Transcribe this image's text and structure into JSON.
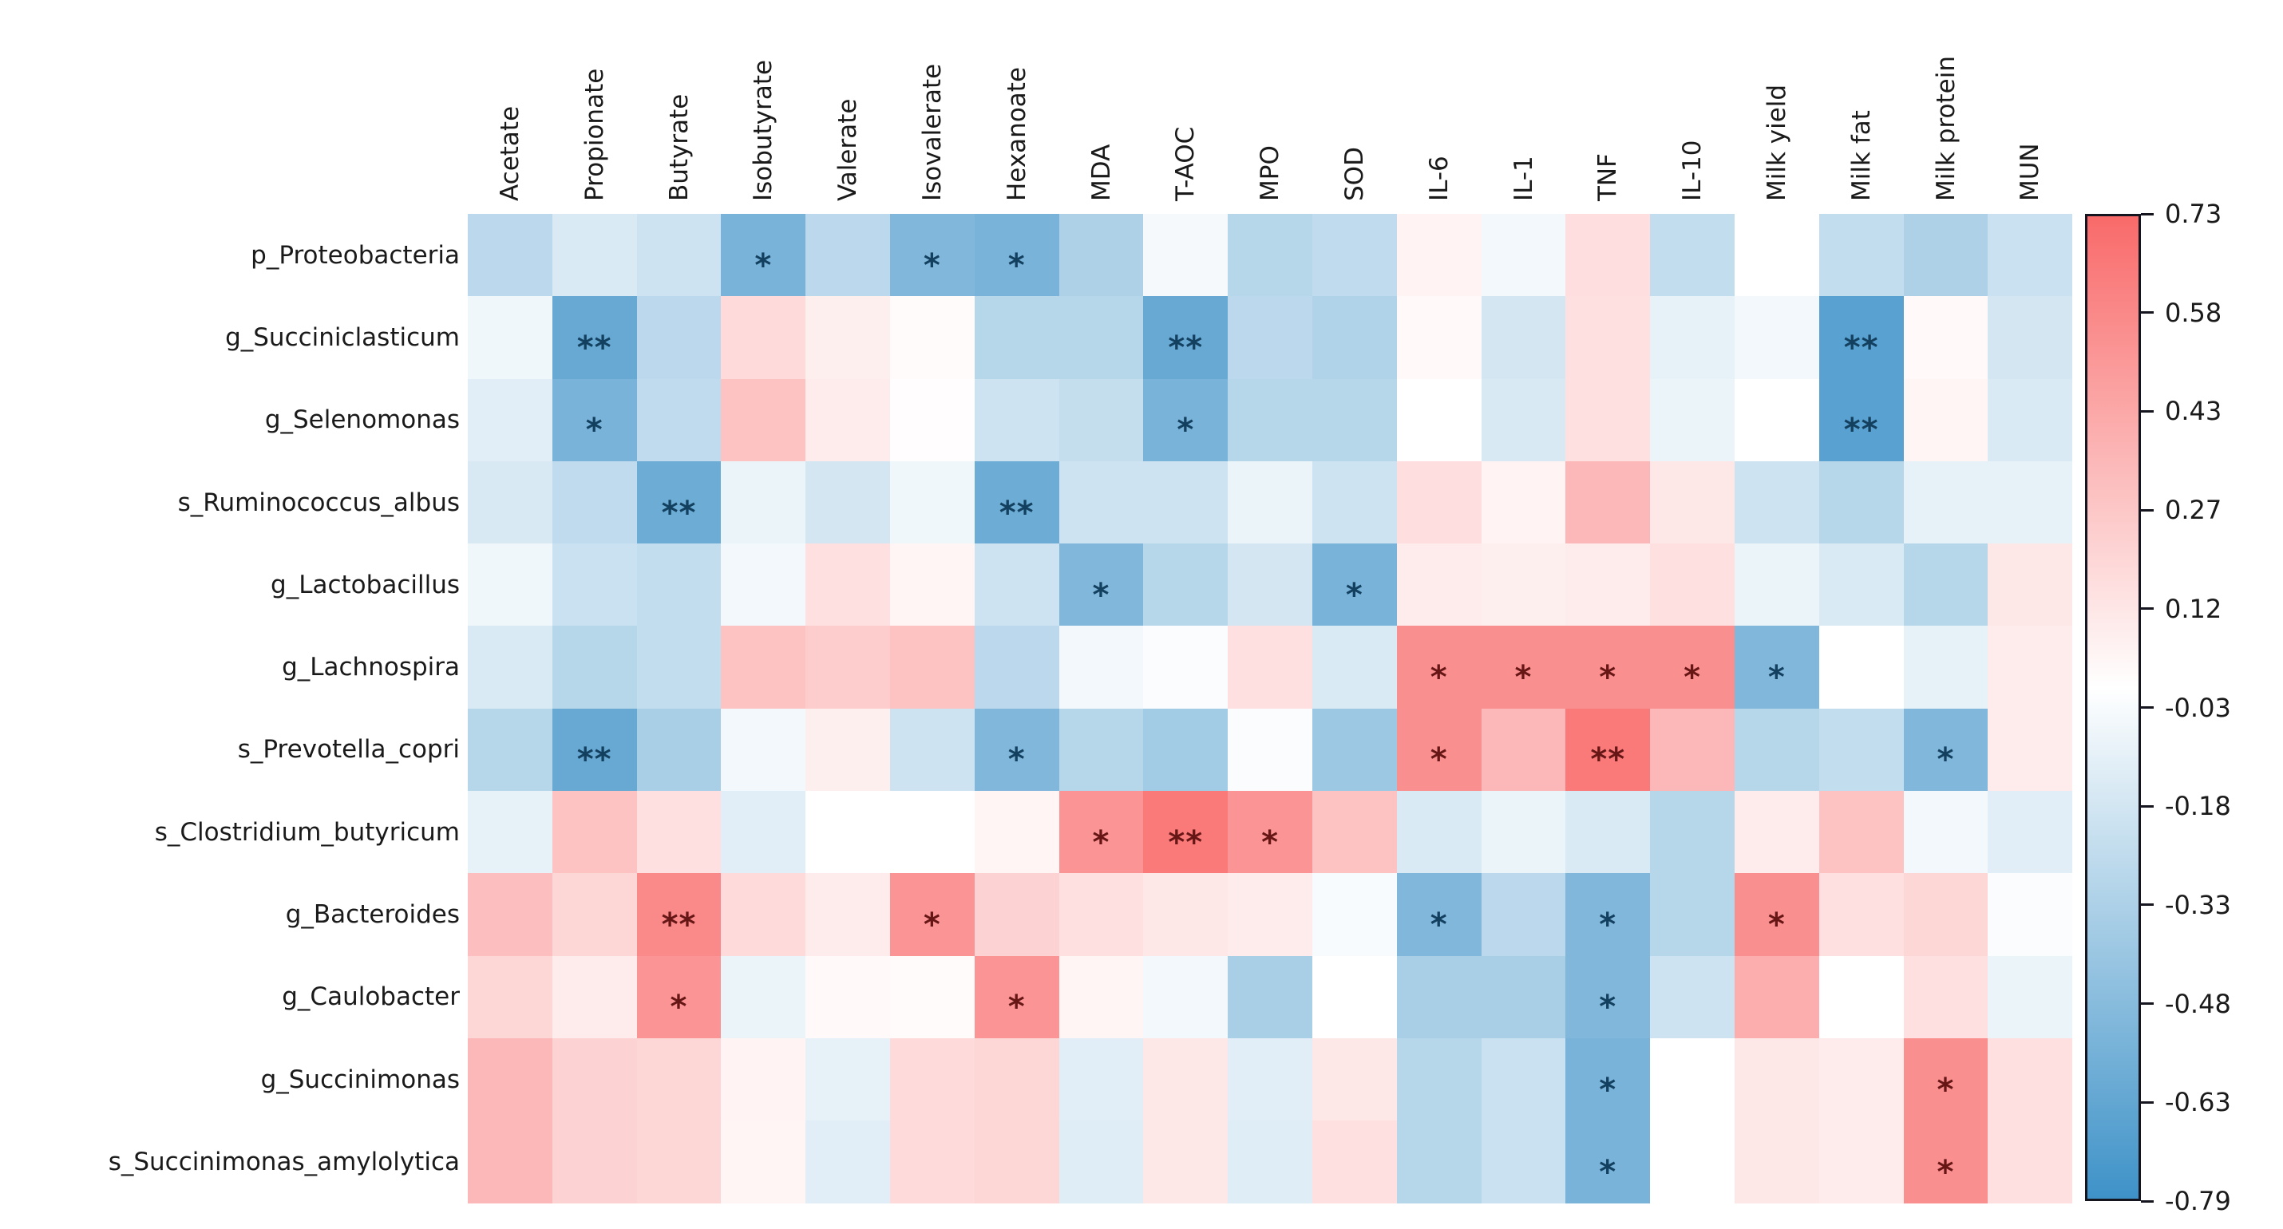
{
  "chart_data": {
    "type": "heatmap",
    "title": "",
    "xlabel": "",
    "ylabel": "",
    "grid": false,
    "legend_position": "right-colorbar",
    "columns": [
      "Acetate",
      "Propionate",
      "Butyrate",
      "Isobutyrate",
      "Valerate",
      "Isovalerate",
      "Hexanoate",
      "MDA",
      "T-AOC",
      "MPO",
      "SOD",
      "IL-6",
      "IL-1",
      "TNF",
      "IL-10",
      "Milk yield",
      "Milk fat",
      "Milk protein",
      "MUN"
    ],
    "rows": [
      "p_Proteobacteria",
      "g_Succiniclasticum",
      "g_Selenomonas",
      "s_Ruminococcus_albus",
      "g_Lactobacillus",
      "g_Lachnospira",
      "s_Prevotella_copri",
      "s_Clostridium_butyricum",
      "g_Bacteroides",
      "g_Caulobacter",
      "g_Succinimonas",
      "s_Succinimonas_amylolytica"
    ],
    "values": [
      [
        -0.28,
        -0.15,
        -0.2,
        -0.55,
        -0.28,
        -0.52,
        -0.55,
        -0.33,
        -0.04,
        -0.3,
        -0.26,
        0.06,
        -0.05,
        0.16,
        -0.25,
        0.0,
        -0.25,
        -0.33,
        -0.22
      ],
      [
        -0.06,
        -0.62,
        -0.28,
        0.18,
        0.08,
        0.02,
        -0.3,
        -0.3,
        -0.62,
        -0.28,
        -0.32,
        0.03,
        -0.18,
        0.15,
        -0.1,
        -0.05,
        -0.68,
        0.03,
        -0.18
      ],
      [
        -0.12,
        -0.55,
        -0.26,
        0.3,
        0.1,
        0.01,
        -0.2,
        -0.24,
        -0.55,
        -0.3,
        -0.3,
        0.0,
        -0.16,
        0.15,
        -0.08,
        0.0,
        -0.68,
        0.05,
        -0.15
      ],
      [
        -0.16,
        -0.26,
        -0.6,
        -0.08,
        -0.18,
        -0.06,
        -0.6,
        -0.2,
        -0.2,
        -0.08,
        -0.2,
        0.16,
        0.06,
        0.35,
        0.12,
        -0.2,
        -0.3,
        -0.1,
        -0.1
      ],
      [
        -0.06,
        -0.22,
        -0.25,
        -0.05,
        0.15,
        0.05,
        -0.2,
        -0.52,
        -0.3,
        -0.18,
        -0.55,
        0.1,
        0.08,
        0.1,
        0.15,
        -0.08,
        -0.15,
        -0.3,
        0.12
      ],
      [
        -0.15,
        -0.3,
        -0.25,
        0.3,
        0.25,
        0.3,
        -0.28,
        -0.05,
        -0.02,
        0.15,
        -0.15,
        0.55,
        0.55,
        0.55,
        0.55,
        -0.52,
        0.0,
        -0.1,
        0.1
      ],
      [
        -0.3,
        -0.62,
        -0.35,
        -0.05,
        0.08,
        -0.2,
        -0.52,
        -0.3,
        -0.38,
        -0.02,
        -0.4,
        0.55,
        0.35,
        0.65,
        0.35,
        -0.3,
        -0.25,
        -0.52,
        0.1
      ],
      [
        -0.1,
        0.3,
        0.15,
        -0.12,
        0.0,
        0.0,
        0.05,
        0.52,
        0.65,
        0.52,
        0.3,
        -0.15,
        -0.08,
        -0.15,
        -0.3,
        0.1,
        0.3,
        -0.05,
        -0.12
      ],
      [
        0.32,
        0.2,
        0.58,
        0.18,
        0.1,
        0.52,
        0.22,
        0.15,
        0.12,
        0.1,
        -0.03,
        -0.52,
        -0.28,
        -0.52,
        -0.3,
        0.55,
        0.15,
        0.2,
        -0.02
      ],
      [
        0.2,
        0.1,
        0.52,
        -0.08,
        0.03,
        0.02,
        0.52,
        0.05,
        -0.05,
        -0.35,
        0.0,
        -0.35,
        -0.35,
        -0.52,
        -0.2,
        0.4,
        0.0,
        0.15,
        -0.08
      ],
      [
        0.35,
        0.22,
        0.2,
        0.06,
        -0.1,
        0.18,
        0.2,
        -0.12,
        0.12,
        -0.12,
        0.12,
        -0.3,
        -0.22,
        -0.55,
        0.0,
        0.12,
        0.1,
        0.55,
        0.15
      ],
      [
        0.35,
        0.22,
        0.2,
        0.05,
        -0.12,
        0.18,
        0.2,
        -0.13,
        0.12,
        -0.13,
        0.15,
        -0.3,
        -0.22,
        -0.55,
        0.0,
        0.12,
        0.1,
        0.55,
        0.15
      ]
    ],
    "significance": [
      [
        "",
        "",
        "",
        "*",
        "",
        "*",
        "*",
        "",
        "",
        "",
        "",
        "",
        "",
        "",
        "",
        "",
        "",
        "",
        ""
      ],
      [
        "",
        "**",
        "",
        "",
        "",
        "",
        "",
        "",
        "**",
        "",
        "",
        "",
        "",
        "",
        "",
        "",
        "**",
        "",
        ""
      ],
      [
        "",
        "*",
        "",
        "",
        "",
        "",
        "",
        "",
        "*",
        "",
        "",
        "",
        "",
        "",
        "",
        "",
        "**",
        "",
        ""
      ],
      [
        "",
        "",
        "**",
        "",
        "",
        "",
        "**",
        "",
        "",
        "",
        "",
        "",
        "",
        "",
        "",
        "",
        "",
        "",
        ""
      ],
      [
        "",
        "",
        "",
        "",
        "",
        "",
        "",
        "*",
        "",
        "",
        "*",
        "",
        "",
        "",
        "",
        "",
        "",
        "",
        ""
      ],
      [
        "",
        "",
        "",
        "",
        "",
        "",
        "",
        "",
        "",
        "",
        "",
        "*",
        "*",
        "*",
        "*",
        "*",
        "",
        "",
        ""
      ],
      [
        "",
        "**",
        "",
        "",
        "",
        "",
        "*",
        "",
        "",
        "",
        "",
        "*",
        "",
        "**",
        "",
        "",
        "",
        "*",
        ""
      ],
      [
        "",
        "",
        "",
        "",
        "",
        "",
        "",
        "*",
        "**",
        "*",
        "",
        "",
        "",
        "",
        "",
        "",
        "",
        "",
        ""
      ],
      [
        "",
        "",
        "**",
        "",
        "",
        "*",
        "",
        "",
        "",
        "",
        "",
        "*",
        "",
        "*",
        "",
        "*",
        "",
        "",
        ""
      ],
      [
        "",
        "",
        "*",
        "",
        "",
        "",
        "*",
        "",
        "",
        "",
        "",
        "",
        "",
        "*",
        "",
        "",
        "",
        "",
        ""
      ],
      [
        "",
        "",
        "",
        "",
        "",
        "",
        "",
        "",
        "",
        "",
        "",
        "",
        "",
        "*",
        "",
        "",
        "",
        "*",
        ""
      ],
      [
        "",
        "",
        "",
        "",
        "",
        "",
        "",
        "",
        "",
        "",
        "",
        "",
        "",
        "*",
        "",
        "",
        "",
        "*",
        ""
      ]
    ],
    "colorbar": {
      "vmin": -0.79,
      "vmax": 0.73,
      "tick_labels": [
        "0.73",
        "0.58",
        "0.43",
        "0.27",
        "0.12",
        "-0.03",
        "-0.18",
        "-0.33",
        "-0.48",
        "-0.63",
        "-0.79"
      ],
      "positive_color": "#f96a6a",
      "negative_color": "#3e92c8",
      "zero_color": "#ffffff",
      "border_color": "#15151f"
    },
    "star_colors": {
      "negative_cells": "#14405f",
      "positive_cells": "#671616"
    }
  }
}
